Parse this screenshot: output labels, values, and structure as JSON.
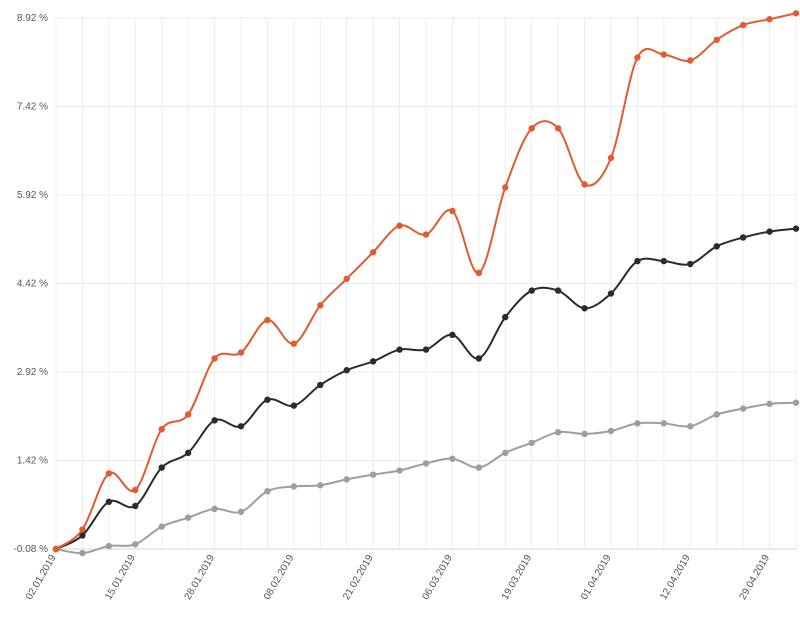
{
  "chart_data": {
    "type": "line",
    "grid": true,
    "ylim": [
      -0.08,
      8.92
    ],
    "y_ticks": [
      -0.08,
      1.42,
      2.92,
      4.42,
      5.92,
      7.42,
      8.92
    ],
    "y_tick_labels": [
      "-0.08 %",
      "1.42 %",
      "2.92 %",
      "4.42 %",
      "5.92 %",
      "7.42 %",
      "8.92 %"
    ],
    "x_tick_labels": [
      "02.01.2019",
      "15.01.2019",
      "28.01.2019",
      "08.02.2019",
      "21.02.2019",
      "06.03.2019",
      "19.03.2019",
      "01.04.2019",
      "12.04.2019",
      "29.04.2019"
    ],
    "x_tick_positions": [
      0,
      3,
      6,
      9,
      12,
      15,
      18,
      21,
      24,
      27
    ],
    "colors": {
      "series_orange": "#e05b2f",
      "series_black": "#2b2b2b",
      "series_gray": "#9e9e9e",
      "grid": "#ececec",
      "axis": "#d6d6d6"
    },
    "series": [
      {
        "color_key": "series_orange",
        "values": [
          -0.08,
          0.25,
          1.2,
          0.92,
          1.95,
          2.2,
          3.15,
          3.25,
          3.8,
          3.4,
          4.05,
          4.5,
          4.95,
          5.4,
          5.25,
          5.65,
          4.6,
          6.05,
          7.05,
          7.05,
          6.1,
          6.55,
          8.25,
          8.3,
          8.2,
          8.55,
          8.8,
          8.9,
          9.0
        ]
      },
      {
        "color_key": "series_black",
        "values": [
          -0.08,
          0.15,
          0.72,
          0.65,
          1.3,
          1.55,
          2.1,
          2.0,
          2.45,
          2.35,
          2.7,
          2.95,
          3.1,
          3.3,
          3.3,
          3.55,
          3.15,
          3.85,
          4.3,
          4.3,
          4.0,
          4.25,
          4.8,
          4.8,
          4.75,
          5.05,
          5.2,
          5.3,
          5.35
        ]
      },
      {
        "color_key": "series_gray",
        "values": [
          -0.08,
          -0.15,
          -0.03,
          0.0,
          0.3,
          0.45,
          0.6,
          0.55,
          0.9,
          0.98,
          1.0,
          1.1,
          1.18,
          1.25,
          1.37,
          1.45,
          1.3,
          1.55,
          1.72,
          1.9,
          1.87,
          1.92,
          2.05,
          2.05,
          2.0,
          2.2,
          2.3,
          2.38,
          2.4
        ]
      }
    ]
  }
}
